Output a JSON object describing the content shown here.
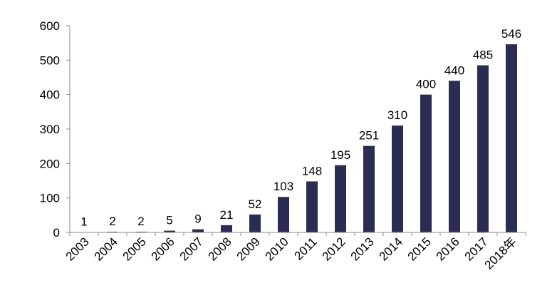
{
  "chart_data": {
    "type": "bar",
    "title": "",
    "xlabel": "",
    "ylabel": "",
    "categories": [
      "2003",
      "2004",
      "2005",
      "2006",
      "2007",
      "2008",
      "2009",
      "2010",
      "2011",
      "2012",
      "2013",
      "2014",
      "2015",
      "2016",
      "2017",
      "2018年"
    ],
    "values": [
      1,
      2,
      2,
      5,
      9,
      21,
      52,
      103,
      148,
      195,
      251,
      310,
      400,
      440,
      485,
      546
    ],
    "data_labels": [
      "1",
      "2",
      "2",
      "5",
      "9",
      "21",
      "52",
      "103",
      "148",
      "195",
      "251",
      "310",
      "400",
      "440",
      "485",
      "546"
    ],
    "ylim": [
      0,
      600
    ],
    "yticks": [
      0,
      100,
      200,
      300,
      400,
      500,
      600
    ],
    "ytick_labels": [
      "0",
      "100",
      "200",
      "300",
      "400",
      "500",
      "600"
    ],
    "grid": false,
    "legend": "none",
    "colors": {
      "bar": "#2b2b53",
      "axis": "#8c8c8c",
      "text": "#000000"
    }
  }
}
